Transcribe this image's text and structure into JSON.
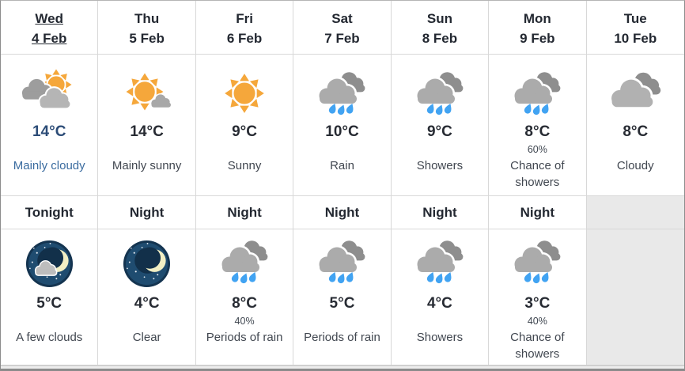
{
  "table": {
    "columns": [
      {
        "id": "wed",
        "day_label": "Wed",
        "date": "4 Feb",
        "selected": true,
        "day": {
          "icon": "sun-behind-two-clouds-icon",
          "temp": "14°C",
          "pop": "",
          "condition": "Mainly cloudy",
          "is_link": true
        },
        "night_label": "Tonight",
        "night": {
          "icon": "moon-with-cloud-icon",
          "temp": "5°C",
          "pop": "",
          "condition": "A few clouds"
        }
      },
      {
        "id": "thu",
        "day_label": "Thu",
        "date": "5 Feb",
        "selected": false,
        "day": {
          "icon": "sun-with-small-cloud-icon",
          "temp": "14°C",
          "pop": "",
          "condition": "Mainly sunny",
          "is_link": false
        },
        "night_label": "Night",
        "night": {
          "icon": "moon-stars-icon",
          "temp": "4°C",
          "pop": "",
          "condition": "Clear"
        }
      },
      {
        "id": "fri",
        "day_label": "Fri",
        "date": "6 Feb",
        "selected": false,
        "day": {
          "icon": "sun-icon",
          "temp": "9°C",
          "pop": "",
          "condition": "Sunny",
          "is_link": false
        },
        "night_label": "Night",
        "night": {
          "icon": "rain-cloud-icon",
          "temp": "8°C",
          "pop": "40%",
          "condition": "Periods of rain"
        }
      },
      {
        "id": "sat",
        "day_label": "Sat",
        "date": "7 Feb",
        "selected": false,
        "day": {
          "icon": "rain-cloud-icon",
          "temp": "10°C",
          "pop": "",
          "condition": "Rain",
          "is_link": false
        },
        "night_label": "Night",
        "night": {
          "icon": "rain-cloud-icon",
          "temp": "5°C",
          "pop": "",
          "condition": "Periods of rain"
        }
      },
      {
        "id": "sun",
        "day_label": "Sun",
        "date": "8 Feb",
        "selected": false,
        "day": {
          "icon": "rain-cloud-icon",
          "temp": "9°C",
          "pop": "",
          "condition": "Showers",
          "is_link": false
        },
        "night_label": "Night",
        "night": {
          "icon": "rain-cloud-icon",
          "temp": "4°C",
          "pop": "",
          "condition": "Showers"
        }
      },
      {
        "id": "mon",
        "day_label": "Mon",
        "date": "9 Feb",
        "selected": false,
        "day": {
          "icon": "rain-cloud-icon",
          "temp": "8°C",
          "pop": "60%",
          "condition": "Chance of showers",
          "is_link": false
        },
        "night_label": "Night",
        "night": {
          "icon": "rain-cloud-icon",
          "temp": "3°C",
          "pop": "40%",
          "condition": "Chance of showers"
        }
      },
      {
        "id": "tue",
        "day_label": "Tue",
        "date": "10 Feb",
        "selected": false,
        "day": {
          "icon": "clouds-icon",
          "temp": "8°C",
          "pop": "",
          "condition": "Cloudy",
          "is_link": false
        },
        "night_label": "",
        "night": null
      }
    ],
    "colors": {
      "link_blue": "#3A6B9F",
      "temp_dark": "#272B33",
      "temp_link_navy": "#2C4C77",
      "sun_orange": "#F5A73B",
      "rain_drop_blue": "#41A3F2",
      "cloud_light_gray": "#ABABAB",
      "cloud_dark_gray": "#8E8E8E",
      "night_navy": "#1F4C70",
      "empty_cell_gray": "#E9E9E9"
    }
  }
}
